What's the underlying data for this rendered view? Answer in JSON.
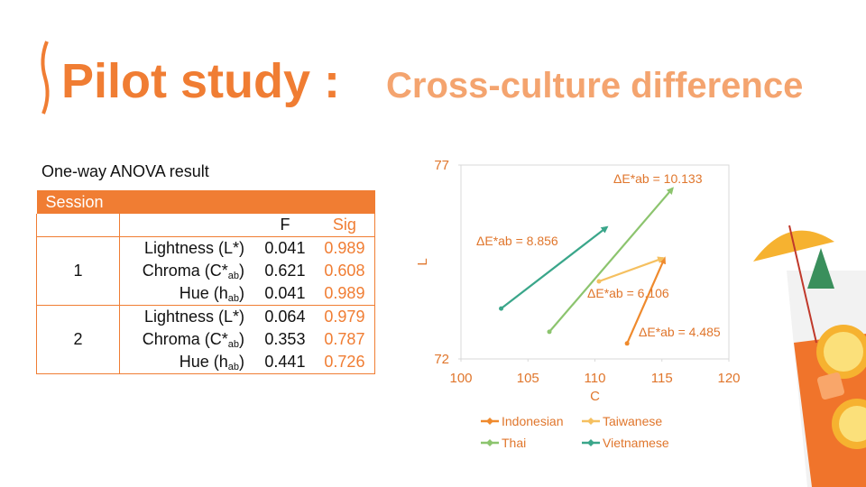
{
  "header": {
    "title": "Pilot study :",
    "subtitle": "Cross-culture difference"
  },
  "table": {
    "caption": "One-way ANOVA result",
    "group_header": "Session",
    "columns": [
      "F",
      "Sig"
    ],
    "sessions": [
      {
        "label": "1",
        "rows": [
          {
            "measure": [
              "Lightness (L*)"
            ],
            "F": "0.041",
            "Sig": "0.989"
          },
          {
            "measure": [
              "Chroma (C*",
              "ab",
              ")"
            ],
            "F": "0.621",
            "Sig": "0.608"
          },
          {
            "measure": [
              "Hue (h",
              "ab",
              ")"
            ],
            "F": "0.041",
            "Sig": "0.989"
          }
        ]
      },
      {
        "label": "2",
        "rows": [
          {
            "measure": [
              "Lightness (L*)"
            ],
            "F": "0.064",
            "Sig": "0.979"
          },
          {
            "measure": [
              "Chroma (C*",
              "ab",
              ")"
            ],
            "F": "0.353",
            "Sig": "0.787"
          },
          {
            "measure": [
              "Hue (h",
              "ab",
              ")"
            ],
            "F": "0.441",
            "Sig": "0.726"
          }
        ]
      }
    ]
  },
  "chart_data": {
    "type": "line",
    "xlabel": "C",
    "ylabel": "L",
    "xlim": [
      100,
      120
    ],
    "xticks": [
      100,
      105,
      110,
      115,
      120
    ],
    "ylim": [
      72,
      77
    ],
    "yticks": [
      72,
      77
    ],
    "series": [
      {
        "name": "Indonesian",
        "color": "#ef8a2d",
        "x": [
          112.4,
          115.2
        ],
        "values": [
          72.4,
          74.6
        ],
        "annotation": "ΔE*ab = 4.485"
      },
      {
        "name": "Taiwanese",
        "color": "#f5c060",
        "x": [
          110.3,
          115.1
        ],
        "values": [
          74.0,
          74.6
        ],
        "annotation": "ΔE*ab = 6.106"
      },
      {
        "name": "Thai",
        "color": "#8cc46e",
        "x": [
          106.6,
          115.8
        ],
        "values": [
          72.7,
          76.4
        ],
        "annotation": "ΔE*ab = 10.133"
      },
      {
        "name": "Vietnamese",
        "color": "#3aa68a",
        "x": [
          103.0,
          110.9
        ],
        "values": [
          73.3,
          75.4
        ],
        "annotation": "ΔE*ab = 8.856"
      }
    ]
  }
}
